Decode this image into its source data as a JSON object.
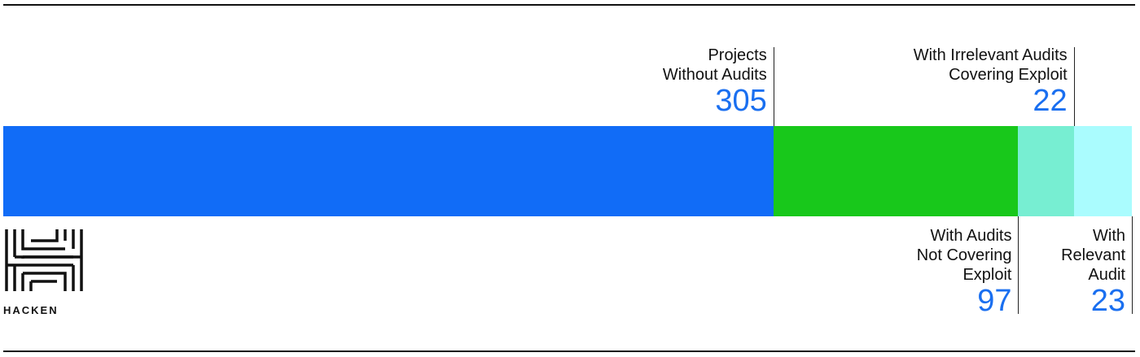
{
  "chart_data": {
    "type": "bar",
    "orientation": "horizontal-stacked",
    "categories": [
      "Projects Without Audits",
      "With Audits Not Covering Exploit",
      "With Irrelevant Audits Covering Exploit",
      "With Relevant Audit"
    ],
    "label_lines": [
      [
        "Projects",
        "Without Audits"
      ],
      [
        "With Audits",
        "Not Covering",
        "Exploit"
      ],
      [
        "With Irrelevant Audits",
        "Covering Exploit"
      ],
      [
        "With",
        "Relevant",
        "Audit"
      ]
    ],
    "values": [
      305,
      97,
      22,
      23
    ],
    "colors": [
      "#116cf7",
      "#18c81b",
      "#77eed2",
      "#aafcfe"
    ],
    "label_positions": [
      "top",
      "bottom",
      "top",
      "bottom"
    ],
    "value_color": "#1a6ff0",
    "grid": false
  },
  "brand": {
    "name": "HACKEN"
  }
}
